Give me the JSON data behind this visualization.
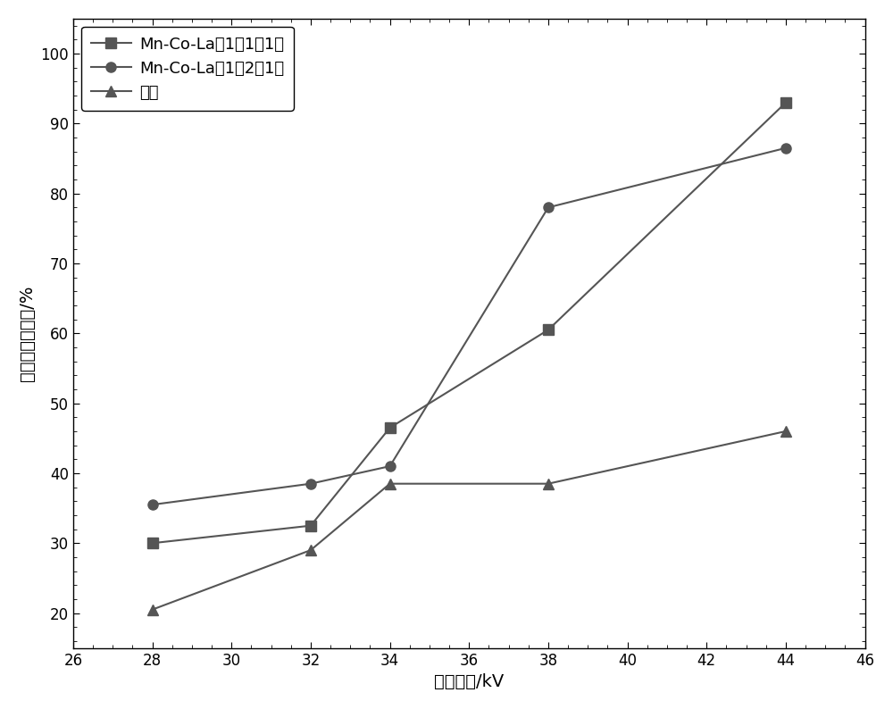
{
  "series": [
    {
      "label": "Mn-Co-La（1：1：1）",
      "x": [
        28,
        32,
        34,
        38,
        44
      ],
      "y": [
        30,
        32.5,
        46.5,
        60.5,
        93
      ],
      "marker": "s",
      "color": "#555555",
      "linewidth": 1.5,
      "markersize": 8
    },
    {
      "label": "Mn-Co-La（1：2：1）",
      "x": [
        28,
        32,
        34,
        38,
        44
      ],
      "y": [
        35.5,
        38.5,
        41,
        78,
        86.5
      ],
      "marker": "o",
      "color": "#555555",
      "linewidth": 1.5,
      "markersize": 8
    },
    {
      "label": "空管",
      "x": [
        28,
        32,
        34,
        38,
        44
      ],
      "y": [
        20.5,
        29,
        38.5,
        38.5,
        46
      ],
      "marker": "^",
      "color": "#555555",
      "linewidth": 1.5,
      "markersize": 8
    }
  ],
  "xlabel": "施加电压/kV",
  "ylabel": "乙酸乙酯降解率/%",
  "xlim": [
    26,
    46
  ],
  "ylim": [
    15,
    105
  ],
  "xticks": [
    26,
    28,
    30,
    32,
    34,
    36,
    38,
    40,
    42,
    44,
    46
  ],
  "yticks": [
    20,
    30,
    40,
    50,
    60,
    70,
    80,
    90,
    100
  ],
  "legend_loc": "upper left",
  "label_fontsize": 14,
  "tick_fontsize": 12,
  "legend_fontsize": 13,
  "background_color": "#ffffff",
  "figure_width": 10.0,
  "figure_height": 7.94,
  "line_color": "#555555",
  "spine_color": "#000000"
}
